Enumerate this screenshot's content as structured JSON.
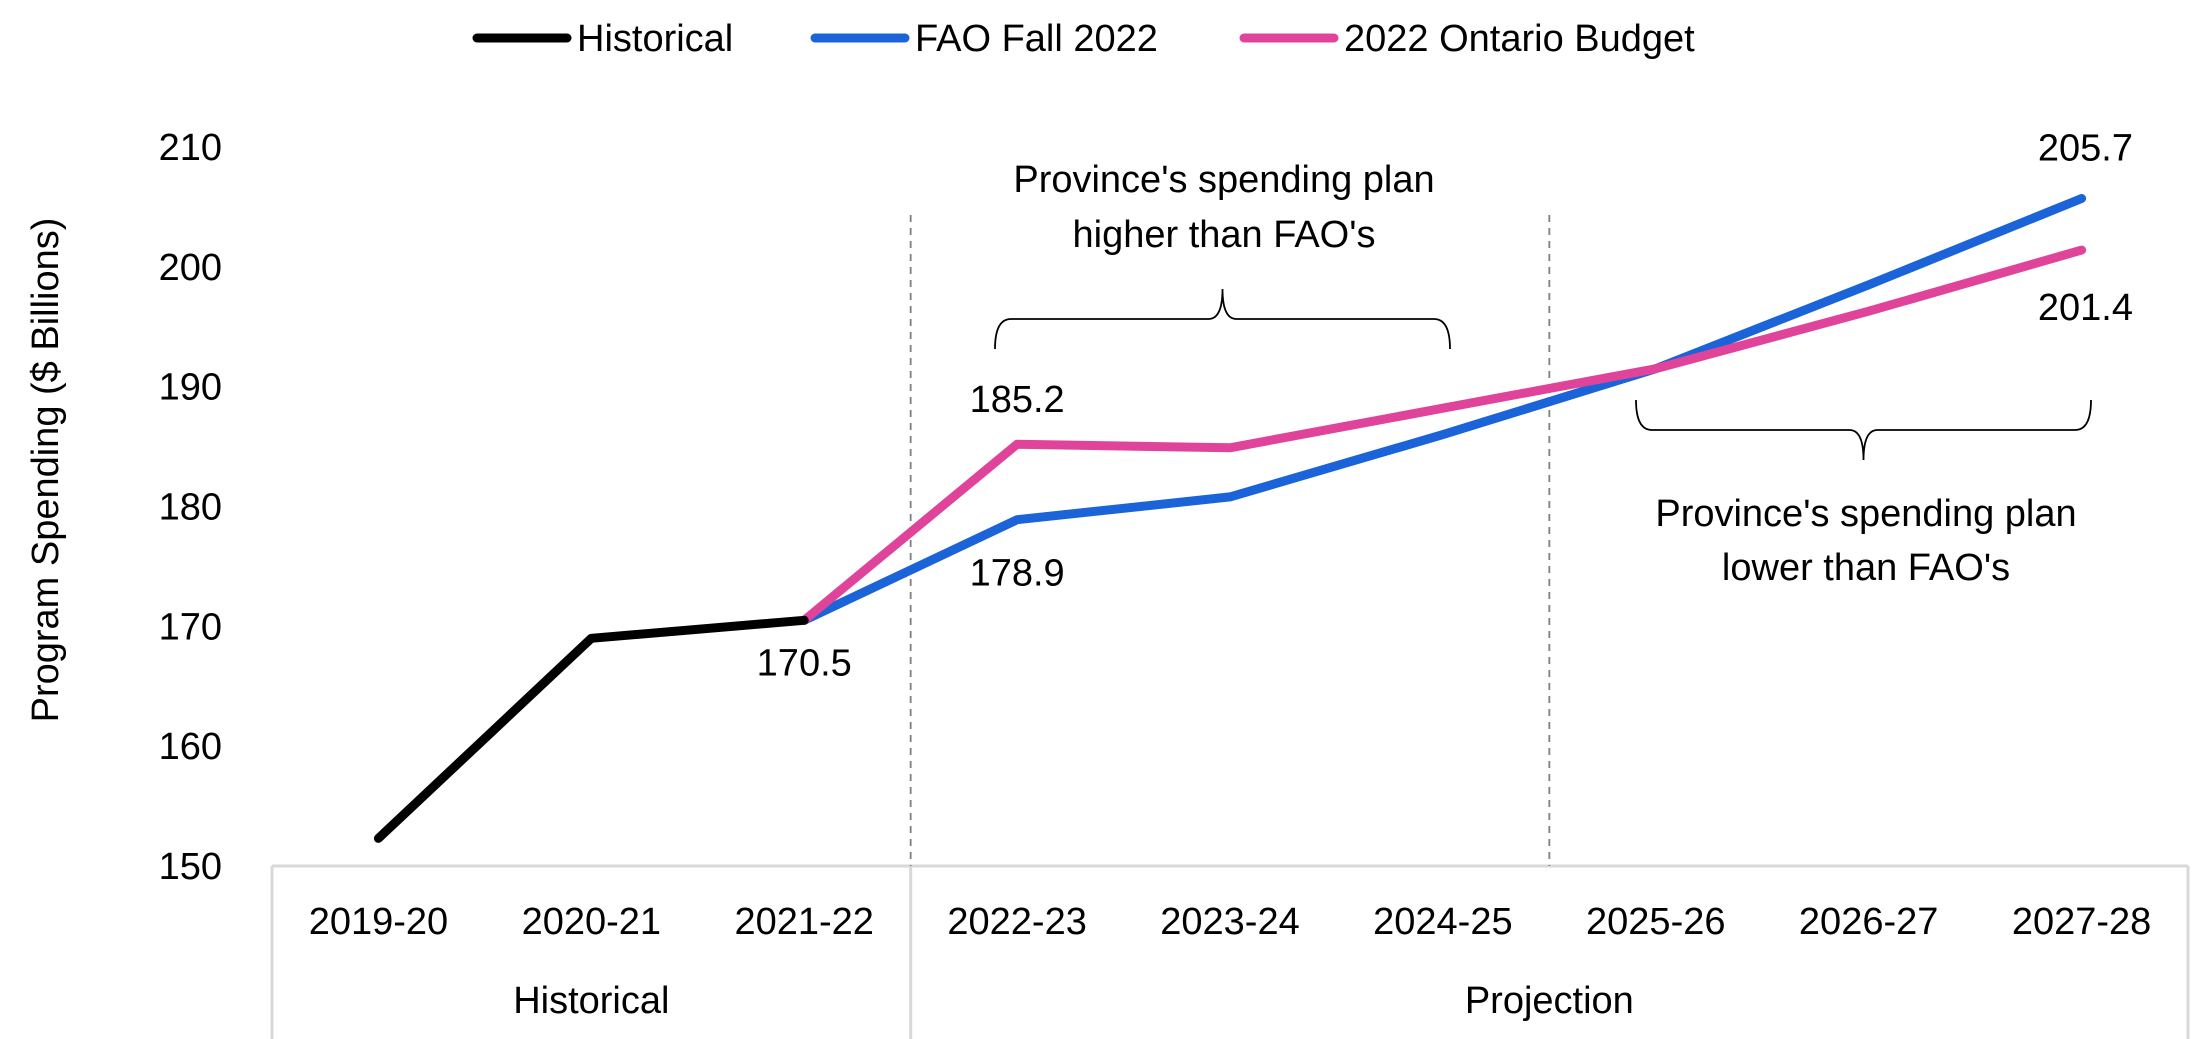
{
  "legend": {
    "items": [
      {
        "key": "historical",
        "label": "Historical"
      },
      {
        "key": "fao",
        "label": "FAO Fall 2022"
      },
      {
        "key": "budget",
        "label": "2022 Ontario Budget"
      }
    ]
  },
  "colors": {
    "historical": "#000000",
    "fao": "#1a63d9",
    "budget": "#e0449a",
    "axis": "#d9d9d9",
    "divider": "#7f7f7f"
  },
  "annotations": {
    "higher_line1": "Province's spending plan",
    "higher_line2": "higher than FAO's",
    "lower_line1": "Province's spending plan",
    "lower_line2": "lower than FAO's"
  },
  "chart_data": {
    "type": "line",
    "ylabel": "Program Spending ($ Billions)",
    "xlabel": "",
    "ylim": [
      150,
      210
    ],
    "yticks": [
      150,
      160,
      170,
      180,
      190,
      200,
      210
    ],
    "grid": false,
    "legend_position": "top",
    "categories": [
      "2019-20",
      "2020-21",
      "2021-22",
      "2022-23",
      "2023-24",
      "2024-25",
      "2025-26",
      "2026-27",
      "2027-28"
    ],
    "groups": [
      {
        "label": "Historical",
        "span": [
          "2019-20",
          "2021-22"
        ]
      },
      {
        "label": "Projection",
        "span": [
          "2022-23",
          "2027-28"
        ]
      }
    ],
    "series": [
      {
        "key": "historical",
        "name": "Historical",
        "values": [
          152.3,
          169.0,
          170.5,
          null,
          null,
          null,
          null,
          null,
          null
        ]
      },
      {
        "key": "fao",
        "name": "FAO Fall 2022",
        "values": [
          null,
          null,
          170.5,
          178.9,
          180.8,
          186.0,
          191.5,
          198.5,
          205.7
        ]
      },
      {
        "key": "budget",
        "name": "2022 Ontario Budget",
        "values": [
          null,
          null,
          170.5,
          185.2,
          184.9,
          188.2,
          191.5,
          196.3,
          201.4
        ]
      }
    ],
    "data_labels": [
      {
        "series": "historical",
        "category": "2021-22",
        "text": "170.5"
      },
      {
        "series": "budget",
        "category": "2022-23",
        "text": "185.2"
      },
      {
        "series": "fao",
        "category": "2022-23",
        "text": "178.9"
      },
      {
        "series": "fao",
        "category": "2027-28",
        "text": "205.7"
      },
      {
        "series": "budget",
        "category": "2027-28",
        "text": "201.4"
      }
    ]
  }
}
